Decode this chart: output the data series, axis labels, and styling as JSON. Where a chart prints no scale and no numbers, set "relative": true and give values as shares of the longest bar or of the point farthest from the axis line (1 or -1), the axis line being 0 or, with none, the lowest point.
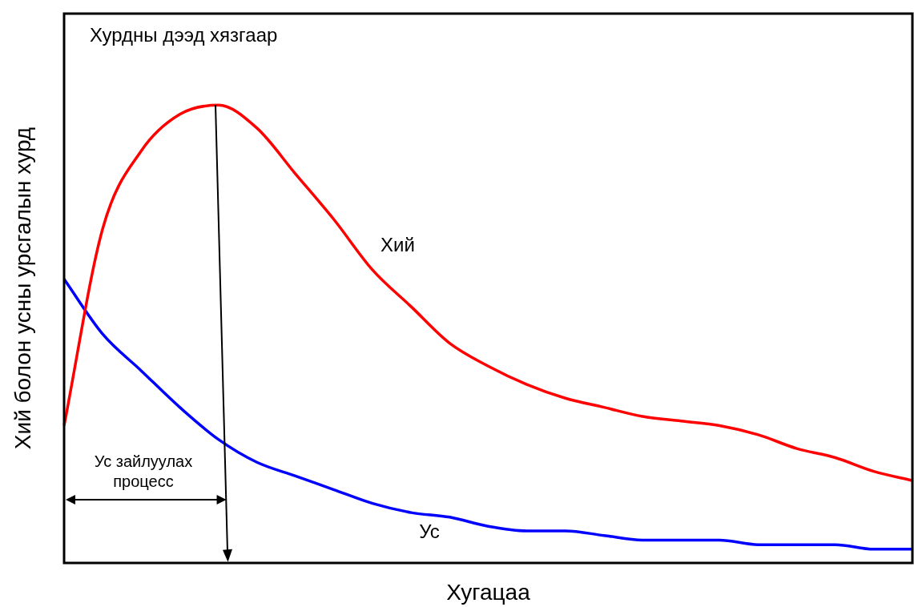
{
  "chart_data": {
    "type": "line",
    "relative": true,
    "xlabel": "Хугацаа",
    "ylabel": "Хий болон усны урсгалын хурд",
    "legend": false,
    "grid": false,
    "marker": "none",
    "categories": [
      null,
      null,
      null,
      null,
      null,
      null,
      null,
      null,
      null,
      null,
      null,
      null,
      null,
      null,
      null,
      null,
      null,
      null,
      null,
      null,
      null,
      null,
      null
    ],
    "series": [
      {
        "name": "Хий",
        "color": "#ff0000",
        "values": [
          0.3,
          0.73,
          0.9,
          0.98,
          1,
          0.95,
          0.85,
          0.75,
          0.64,
          0.56,
          0.48,
          0.43,
          0.39,
          0.36,
          0.34,
          0.32,
          0.31,
          0.3,
          0.28,
          0.25,
          0.23,
          0.2,
          0.18
        ]
      },
      {
        "name": "Ус",
        "color": "#0000ff",
        "values": [
          0.62,
          0.5,
          0.42,
          0.34,
          0.27,
          0.22,
          0.19,
          0.16,
          0.13,
          0.11,
          0.1,
          0.08,
          0.07,
          0.07,
          0.06,
          0.05,
          0.05,
          0.05,
          0.04,
          0.04,
          0.04,
          0.03,
          0.03
        ]
      }
    ],
    "annotations": [
      "Хурдны дээд хязгаар",
      "Ус зайлуулах процесс"
    ]
  }
}
